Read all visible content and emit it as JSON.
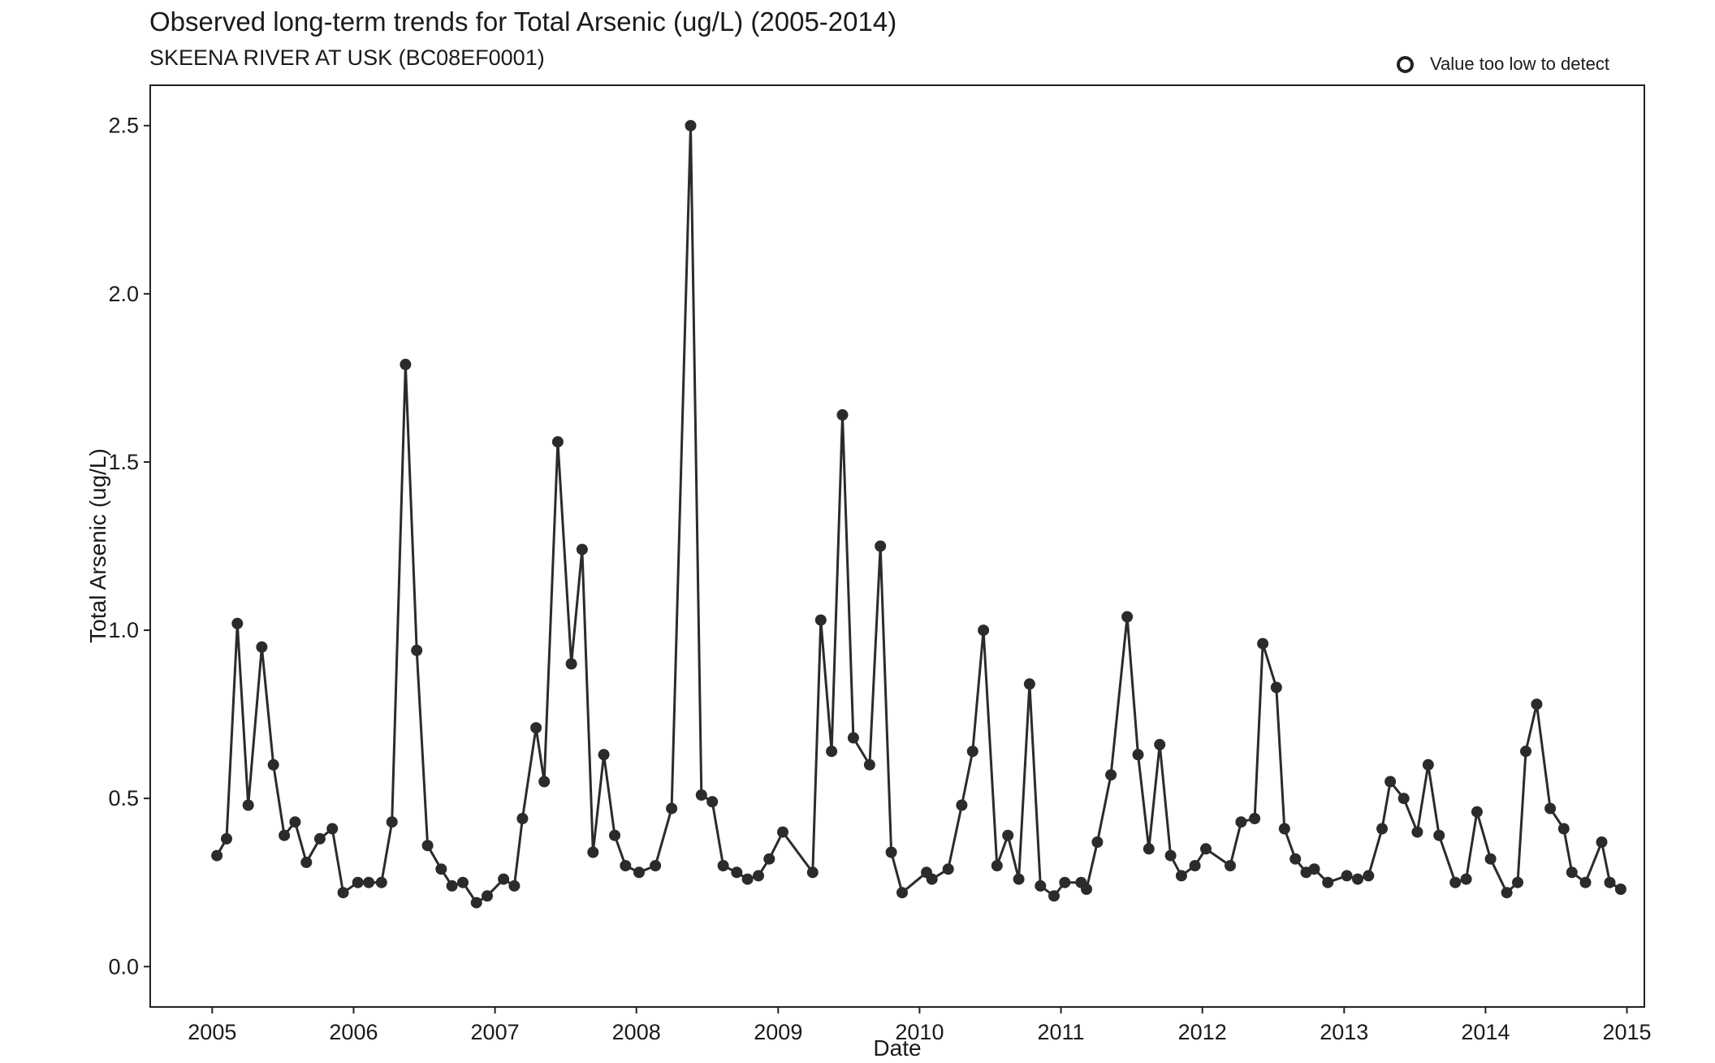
{
  "title": "Observed long-term trends for Total Arsenic (ug/L) (2005-2014)",
  "subtitle": "SKEENA RIVER AT USK (BC08EF0001)",
  "legend": {
    "label": "Value too low to detect",
    "symbol": "open-circle"
  },
  "chart_data": {
    "type": "line",
    "title": "Observed long-term trends for Total Arsenic (ug/L) (2005-2014)",
    "subtitle": "SKEENA RIVER AT USK (BC08EF0001)",
    "xlabel": "Date",
    "ylabel": "Total Arsenic (ug/L)",
    "xlim": [
      "2004-07-25",
      "2015-02-15"
    ],
    "ylim": [
      -0.12,
      2.62
    ],
    "x_ticks": [
      "2005",
      "2006",
      "2007",
      "2008",
      "2009",
      "2010",
      "2011",
      "2012",
      "2013",
      "2014",
      "2015"
    ],
    "y_ticks": [
      "0.0",
      "0.5",
      "1.0",
      "1.5",
      "2.0",
      "2.5"
    ],
    "grid": false,
    "legend_position": "top-right",
    "series": [
      {
        "color": "#2b2b2b",
        "points": [
          [
            "2005-01-13",
            0.33
          ],
          [
            "2005-02-07",
            0.38
          ],
          [
            "2005-03-07",
            1.02
          ],
          [
            "2005-04-04",
            0.48
          ],
          [
            "2005-05-09",
            0.95
          ],
          [
            "2005-06-08",
            0.6
          ],
          [
            "2005-07-06",
            0.39
          ],
          [
            "2005-08-03",
            0.43
          ],
          [
            "2005-09-01",
            0.31
          ],
          [
            "2005-10-06",
            0.38
          ],
          [
            "2005-11-07",
            0.41
          ],
          [
            "2005-12-05",
            0.22
          ],
          [
            "2006-01-12",
            0.25
          ],
          [
            "2006-02-09",
            0.25
          ],
          [
            "2006-03-14",
            0.25
          ],
          [
            "2006-04-10",
            0.43
          ],
          [
            "2006-05-15",
            1.79
          ],
          [
            "2006-06-13",
            0.94
          ],
          [
            "2006-07-11",
            0.36
          ],
          [
            "2006-08-15",
            0.29
          ],
          [
            "2006-09-12",
            0.24
          ],
          [
            "2006-10-10",
            0.25
          ],
          [
            "2006-11-14",
            0.19
          ],
          [
            "2006-12-12",
            0.21
          ],
          [
            "2007-01-23",
            0.26
          ],
          [
            "2007-02-20",
            0.24
          ],
          [
            "2007-03-13",
            0.44
          ],
          [
            "2007-04-17",
            0.71
          ],
          [
            "2007-05-08",
            0.55
          ],
          [
            "2007-06-12",
            1.56
          ],
          [
            "2007-07-17",
            0.9
          ],
          [
            "2007-08-14",
            1.24
          ],
          [
            "2007-09-11",
            0.34
          ],
          [
            "2007-10-09",
            0.63
          ],
          [
            "2007-11-06",
            0.39
          ],
          [
            "2007-12-04",
            0.3
          ],
          [
            "2008-01-08",
            0.28
          ],
          [
            "2008-02-19",
            0.3
          ],
          [
            "2008-04-01",
            0.47
          ],
          [
            "2008-05-20",
            2.5
          ],
          [
            "2008-06-17",
            0.51
          ],
          [
            "2008-07-15",
            0.49
          ],
          [
            "2008-08-12",
            0.3
          ],
          [
            "2008-09-16",
            0.28
          ],
          [
            "2008-10-14",
            0.26
          ],
          [
            "2008-11-11",
            0.27
          ],
          [
            "2008-12-09",
            0.32
          ],
          [
            "2009-01-13",
            0.4
          ],
          [
            "2009-03-31",
            0.28
          ],
          [
            "2009-04-21",
            1.03
          ],
          [
            "2009-05-19",
            0.64
          ],
          [
            "2009-06-16",
            1.64
          ],
          [
            "2009-07-14",
            0.68
          ],
          [
            "2009-08-25",
            0.6
          ],
          [
            "2009-09-22",
            1.25
          ],
          [
            "2009-10-20",
            0.34
          ],
          [
            "2009-11-17",
            0.22
          ],
          [
            "2010-01-19",
            0.28
          ],
          [
            "2010-02-02",
            0.26
          ],
          [
            "2010-03-16",
            0.29
          ],
          [
            "2010-04-20",
            0.48
          ],
          [
            "2010-05-18",
            0.64
          ],
          [
            "2010-06-15",
            1.0
          ],
          [
            "2010-07-20",
            0.3
          ],
          [
            "2010-08-17",
            0.39
          ],
          [
            "2010-09-14",
            0.26
          ],
          [
            "2010-10-12",
            0.84
          ],
          [
            "2010-11-09",
            0.24
          ],
          [
            "2010-12-14",
            0.21
          ],
          [
            "2011-01-11",
            0.25
          ],
          [
            "2011-02-22",
            0.25
          ],
          [
            "2011-03-08",
            0.23
          ],
          [
            "2011-04-05",
            0.37
          ],
          [
            "2011-05-10",
            0.57
          ],
          [
            "2011-06-21",
            1.04
          ],
          [
            "2011-07-19",
            0.63
          ],
          [
            "2011-08-16",
            0.35
          ],
          [
            "2011-09-13",
            0.66
          ],
          [
            "2011-10-11",
            0.33
          ],
          [
            "2011-11-08",
            0.27
          ],
          [
            "2011-12-13",
            0.3
          ],
          [
            "2012-01-10",
            0.35
          ],
          [
            "2012-03-13",
            0.3
          ],
          [
            "2012-04-10",
            0.43
          ],
          [
            "2012-05-15",
            0.44
          ],
          [
            "2012-06-05",
            0.96
          ],
          [
            "2012-07-10",
            0.83
          ],
          [
            "2012-07-31",
            0.41
          ],
          [
            "2012-08-28",
            0.32
          ],
          [
            "2012-09-25",
            0.28
          ],
          [
            "2012-10-16",
            0.29
          ],
          [
            "2012-11-20",
            0.25
          ],
          [
            "2013-01-08",
            0.27
          ],
          [
            "2013-02-05",
            0.26
          ],
          [
            "2013-03-05",
            0.27
          ],
          [
            "2013-04-09",
            0.41
          ],
          [
            "2013-04-30",
            0.55
          ],
          [
            "2013-06-04",
            0.5
          ],
          [
            "2013-07-09",
            0.4
          ],
          [
            "2013-08-06",
            0.6
          ],
          [
            "2013-09-03",
            0.39
          ],
          [
            "2013-10-15",
            0.25
          ],
          [
            "2013-11-12",
            0.26
          ],
          [
            "2013-12-10",
            0.46
          ],
          [
            "2014-01-14",
            0.32
          ],
          [
            "2014-02-25",
            0.22
          ],
          [
            "2014-03-25",
            0.25
          ],
          [
            "2014-04-15",
            0.64
          ],
          [
            "2014-05-13",
            0.78
          ],
          [
            "2014-06-17",
            0.47
          ],
          [
            "2014-07-22",
            0.41
          ],
          [
            "2014-08-12",
            0.28
          ],
          [
            "2014-09-16",
            0.25
          ],
          [
            "2014-10-28",
            0.37
          ],
          [
            "2014-11-18",
            0.25
          ],
          [
            "2014-12-16",
            0.23
          ]
        ]
      }
    ]
  }
}
